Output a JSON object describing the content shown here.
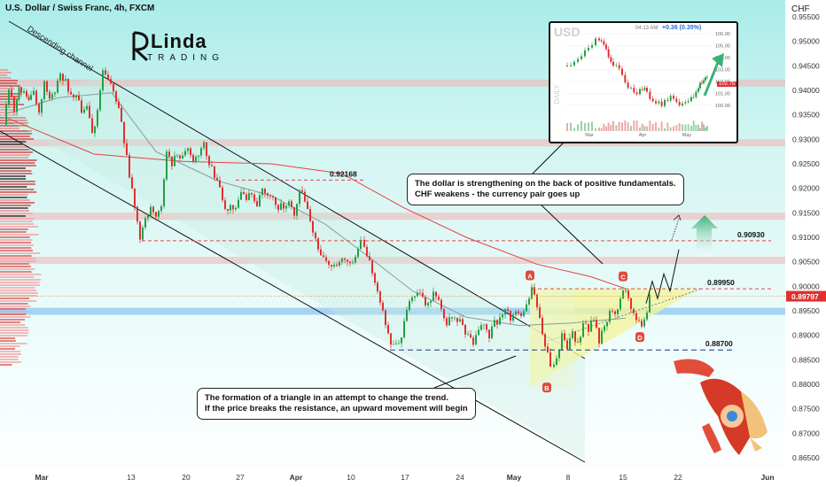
{
  "header": {
    "title": "U.S. Dollar / Swiss Franc, 4h, FXCM",
    "currency": "CHF"
  },
  "logo": {
    "word1": "Linda",
    "word2": "TRADING"
  },
  "chart_data": {
    "type": "candlestick",
    "symbol": "USDCHF",
    "timeframe": "4h",
    "x_ticks": [
      "Mar",
      "13",
      "20",
      "27",
      "Apr",
      "10",
      "17",
      "24",
      "May",
      "8",
      "15",
      "22",
      "Jun"
    ],
    "y_ticks": [
      "0.95500",
      "0.95000",
      "0.94500",
      "0.94000",
      "0.93500",
      "0.93000",
      "0.92500",
      "0.92000",
      "0.91500",
      "0.91000",
      "0.90500",
      "0.90000",
      "0.89500",
      "0.89000",
      "0.88500",
      "0.88000",
      "0.87500",
      "0.87000",
      "0.86500"
    ],
    "ylim": [
      0.863,
      0.957
    ],
    "price_path": [
      [
        0,
        0.933
      ],
      [
        6,
        0.9405
      ],
      [
        12,
        0.936
      ],
      [
        17,
        0.941
      ],
      [
        23,
        0.9395
      ],
      [
        28,
        0.9378
      ],
      [
        34,
        0.9392
      ],
      [
        40,
        0.9356
      ],
      [
        46,
        0.942
      ],
      [
        52,
        0.9382
      ],
      [
        58,
        0.94
      ],
      [
        64,
        0.9435
      ],
      [
        70,
        0.9418
      ],
      [
        76,
        0.9385
      ],
      [
        82,
        0.9395
      ],
      [
        88,
        0.935
      ],
      [
        94,
        0.9365
      ],
      [
        100,
        0.9305
      ],
      [
        106,
        0.936
      ],
      [
        112,
        0.944
      ],
      [
        118,
        0.9418
      ],
      [
        124,
        0.94
      ],
      [
        130,
        0.936
      ],
      [
        136,
        0.93
      ],
      [
        142,
        0.922
      ],
      [
        148,
        0.917
      ],
      [
        154,
        0.91
      ],
      [
        160,
        0.914
      ],
      [
        166,
        0.916
      ],
      [
        172,
        0.9148
      ],
      [
        178,
        0.9165
      ],
      [
        184,
        0.9275
      ],
      [
        190,
        0.925
      ],
      [
        196,
        0.9268
      ],
      [
        202,
        0.9262
      ],
      [
        208,
        0.9285
      ],
      [
        214,
        0.9255
      ],
      [
        220,
        0.9275
      ],
      [
        226,
        0.9295
      ],
      [
        232,
        0.925
      ],
      [
        238,
        0.9225
      ],
      [
        244,
        0.9195
      ],
      [
        250,
        0.9155
      ],
      [
        256,
        0.917
      ],
      [
        262,
        0.916
      ],
      [
        268,
        0.9186
      ],
      [
        274,
        0.9175
      ],
      [
        280,
        0.9192
      ],
      [
        286,
        0.9158
      ],
      [
        292,
        0.9205
      ],
      [
        298,
        0.919
      ],
      [
        304,
        0.9185
      ],
      [
        310,
        0.916
      ],
      [
        316,
        0.9165
      ],
      [
        322,
        0.9175
      ],
      [
        328,
        0.915
      ],
      [
        334,
        0.92
      ],
      [
        340,
        0.917
      ],
      [
        346,
        0.913
      ],
      [
        352,
        0.91
      ],
      [
        358,
        0.9055
      ],
      [
        364,
        0.905
      ],
      [
        370,
        0.9048
      ],
      [
        376,
        0.904
      ],
      [
        382,
        0.906
      ],
      [
        388,
        0.9058
      ],
      [
        394,
        0.9045
      ],
      [
        400,
        0.9075
      ],
      [
        404,
        0.909
      ],
      [
        410,
        0.906
      ],
      [
        416,
        0.903
      ],
      [
        422,
        0.899
      ],
      [
        428,
        0.895
      ],
      [
        434,
        0.89
      ],
      [
        440,
        0.8875
      ],
      [
        446,
        0.888
      ],
      [
        452,
        0.8925
      ],
      [
        458,
        0.897
      ],
      [
        464,
        0.8985
      ],
      [
        470,
        0.898
      ],
      [
        476,
        0.896
      ],
      [
        482,
        0.8978
      ],
      [
        488,
        0.8985
      ],
      [
        494,
        0.8955
      ],
      [
        500,
        0.892
      ],
      [
        506,
        0.894
      ],
      [
        512,
        0.8935
      ],
      [
        518,
        0.8915
      ],
      [
        524,
        0.8898
      ],
      [
        530,
        0.888
      ],
      [
        536,
        0.8905
      ],
      [
        542,
        0.893
      ],
      [
        548,
        0.89
      ],
      [
        554,
        0.8925
      ],
      [
        560,
        0.893
      ],
      [
        566,
        0.896
      ],
      [
        572,
        0.8935
      ],
      [
        578,
        0.895
      ],
      [
        584,
        0.894
      ],
      [
        590,
        0.8955
      ],
      [
        596,
        0.8995
      ],
      [
        602,
        0.896
      ],
      [
        608,
        0.89
      ],
      [
        614,
        0.886
      ],
      [
        618,
        0.8828
      ],
      [
        624,
        0.885
      ],
      [
        630,
        0.89
      ],
      [
        636,
        0.887
      ],
      [
        642,
        0.8905
      ],
      [
        648,
        0.888
      ],
      [
        654,
        0.892
      ],
      [
        660,
        0.8915
      ],
      [
        666,
        0.893
      ],
      [
        672,
        0.889
      ],
      [
        678,
        0.892
      ],
      [
        684,
        0.895
      ],
      [
        690,
        0.8945
      ],
      [
        696,
        0.8975
      ],
      [
        702,
        0.8995
      ],
      [
        708,
        0.896
      ],
      [
        714,
        0.8935
      ],
      [
        720,
        0.8918
      ],
      [
        726,
        0.8945
      ],
      [
        730,
        0.8975
      ]
    ],
    "levels": [
      {
        "label": "0.92168",
        "value": 0.92168
      },
      {
        "label": "0.90930",
        "value": 0.9093
      },
      {
        "label": "0.89950",
        "value": 0.8995
      },
      {
        "label": "0.88700",
        "value": 0.887
      }
    ],
    "current_price": {
      "label": "0.89797",
      "value": 0.89797
    },
    "zones": [
      0.9415,
      0.9293,
      0.9143,
      0.9053,
      0.8949
    ],
    "points": [
      {
        "label": "A",
        "value": 0.9005
      },
      {
        "label": "B",
        "value": 0.8807
      },
      {
        "label": "C",
        "value": 0.9003
      },
      {
        "label": "D",
        "value": 0.891
      }
    ],
    "ma_red": [
      [
        0,
        0.9345
      ],
      [
        100,
        0.927
      ],
      [
        200,
        0.9255
      ],
      [
        300,
        0.925
      ],
      [
        380,
        0.923
      ],
      [
        450,
        0.916
      ],
      [
        520,
        0.91
      ],
      [
        600,
        0.9045
      ],
      [
        660,
        0.902
      ],
      [
        700,
        0.8995
      ]
    ],
    "ma_gray": [
      [
        0,
        0.9352
      ],
      [
        60,
        0.9385
      ],
      [
        120,
        0.9395
      ],
      [
        170,
        0.9275
      ],
      [
        240,
        0.9215
      ],
      [
        300,
        0.9185
      ],
      [
        360,
        0.9128
      ],
      [
        410,
        0.906
      ],
      [
        460,
        0.899
      ],
      [
        520,
        0.8937
      ],
      [
        580,
        0.892
      ],
      [
        640,
        0.8925
      ],
      [
        700,
        0.8935
      ]
    ]
  },
  "annotations": {
    "channel_label": "Descending channel",
    "callout_top_line1": "The dollar is strengthening on the back of positive fundamentals.",
    "callout_top_line2": "CHF weakens - the currency pair goes up",
    "callout_bottom_line1": "The formation of a triangle in an attempt to change the trend.",
    "callout_bottom_line2": "If the price breaks the resistance, an upward movement will begin"
  },
  "inset": {
    "symbol": "USD",
    "time": "04:13 AM",
    "change": "+0.36 (0.35%)",
    "side_label": "DAILY",
    "y_ticks": [
      "106.00",
      "105.00",
      "104.00",
      "103.00",
      "102.00",
      "101.00",
      "100.00"
    ],
    "x_ticks": [
      "Mar",
      "Apr",
      "May"
    ],
    "price_badge": "102.75"
  },
  "colors": {
    "up": "#22a046",
    "down": "#e0302f",
    "level_red": "#e04848",
    "ma_red": "#e84040",
    "ma_gray": "#8a9a9a",
    "arrow_green": "#3bb07a",
    "triangle": "#f1f5a0"
  }
}
